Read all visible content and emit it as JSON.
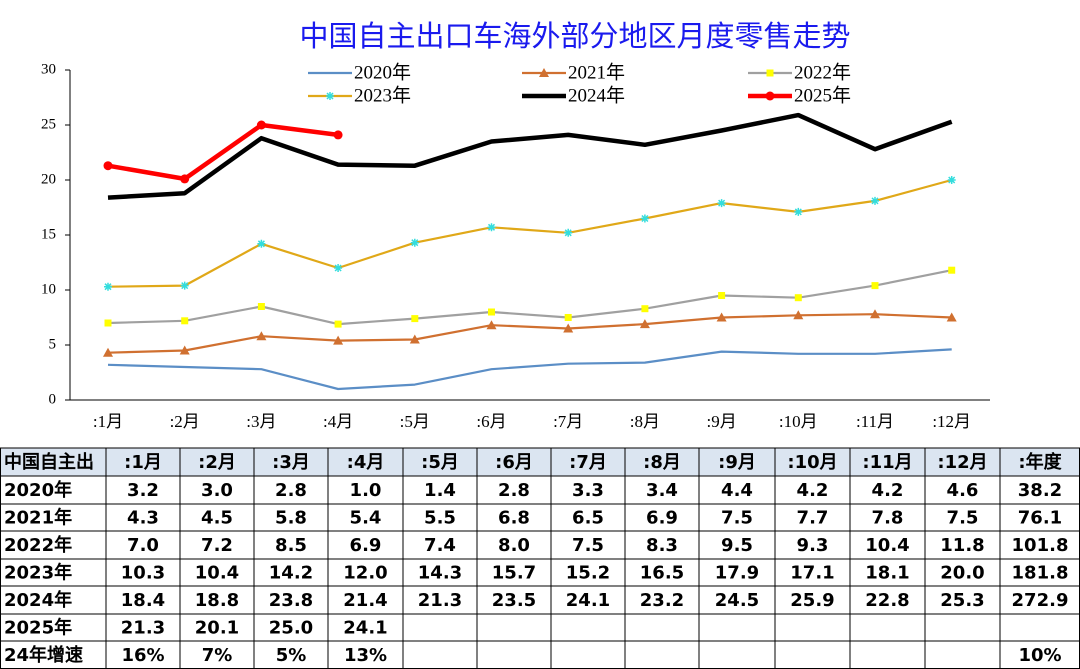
{
  "chart_data": {
    "type": "line",
    "title": "中国自主出口车海外部分地区月度零售走势",
    "categories": [
      ":1月",
      ":2月",
      ":3月",
      ":4月",
      ":5月",
      ":6月",
      ":7月",
      ":8月",
      ":9月",
      ":10月",
      ":11月",
      ":12月"
    ],
    "ylim": [
      0,
      30
    ],
    "yticks": [
      0,
      5,
      10,
      15,
      20,
      25,
      30
    ],
    "grid": false,
    "series": [
      {
        "name": "2020年",
        "color": "#5b8ec6",
        "marker": "none",
        "values": [
          3.2,
          3.0,
          2.8,
          1.0,
          1.4,
          2.8,
          3.3,
          3.4,
          4.4,
          4.2,
          4.2,
          4.6
        ],
        "value_labels": [
          "3.2",
          "3.0",
          "2.8",
          "1.0",
          "1.4",
          "2.8",
          "3.3",
          "3.4",
          "4.4",
          "4.2",
          "4.2",
          "4.6"
        ]
      },
      {
        "name": "2021年",
        "color": "#d07030",
        "marker": "triangle",
        "marker_color": "#d07030",
        "values": [
          4.3,
          4.5,
          5.8,
          5.4,
          5.5,
          6.8,
          6.5,
          6.9,
          7.5,
          7.7,
          7.8,
          7.5
        ],
        "value_labels": [
          "4.3",
          "4.5",
          "5.8",
          "5.4",
          "5.5",
          "6.8",
          "6.5",
          "6.9",
          "7.5",
          "7.7",
          "7.8",
          "7.5"
        ]
      },
      {
        "name": "2022年",
        "color": "#a0a0a0",
        "marker": "square",
        "marker_color": "#ffff00",
        "values": [
          7.0,
          7.2,
          8.5,
          6.9,
          7.4,
          8.0,
          7.5,
          8.3,
          9.5,
          9.3,
          10.4,
          11.8
        ],
        "value_labels": [
          "7.0",
          "7.2",
          "8.5",
          "6.9",
          "7.4",
          "8.0",
          "7.5",
          "8.3",
          "9.5",
          "9.3",
          "10.4",
          "11.8"
        ]
      },
      {
        "name": "2023年",
        "color": "#e0a818",
        "marker": "star",
        "marker_color": "#33dddd",
        "values": [
          10.3,
          10.4,
          14.2,
          12.0,
          14.3,
          15.7,
          15.2,
          16.5,
          17.9,
          17.1,
          18.1,
          20.0
        ],
        "value_labels": [
          "10.3",
          "10.4",
          "14.2",
          "12.0",
          "14.3",
          "15.7",
          "15.2",
          "16.5",
          "17.9",
          "17.1",
          "18.1",
          "20.0"
        ]
      },
      {
        "name": "2024年",
        "color": "#000000",
        "marker": "none",
        "values": [
          18.4,
          18.8,
          23.8,
          21.4,
          21.3,
          23.5,
          24.1,
          23.2,
          24.5,
          25.9,
          22.8,
          25.3
        ],
        "value_labels": [
          "18.4",
          "18.8",
          "23.8",
          "21.4",
          "21.3",
          "23.5",
          "24.1",
          "23.2",
          "24.5",
          "25.9",
          "22.8",
          "25.3"
        ]
      },
      {
        "name": "2025年",
        "color": "#ff0000",
        "marker": "circle",
        "marker_color": "#ff0000",
        "values": [
          21.3,
          20.1,
          25.0,
          24.1,
          null,
          null,
          null,
          null,
          null,
          null,
          null,
          null
        ],
        "value_labels": [
          "21.3",
          "20.1",
          "25.0",
          "24.1",
          null,
          null,
          null,
          null,
          null,
          null,
          null,
          null
        ]
      }
    ]
  },
  "table": {
    "corner": "中国自主出",
    "total_header": ":年度",
    "totals": [
      38.2,
      76.1,
      101.8,
      181.8,
      272.9,
      null
    ],
    "growth_label": "24年增速",
    "growth": [
      "16%",
      "7%",
      "5%",
      "13%",
      null,
      null,
      null,
      null,
      null,
      null,
      null,
      null
    ],
    "growth_total": "10%"
  }
}
